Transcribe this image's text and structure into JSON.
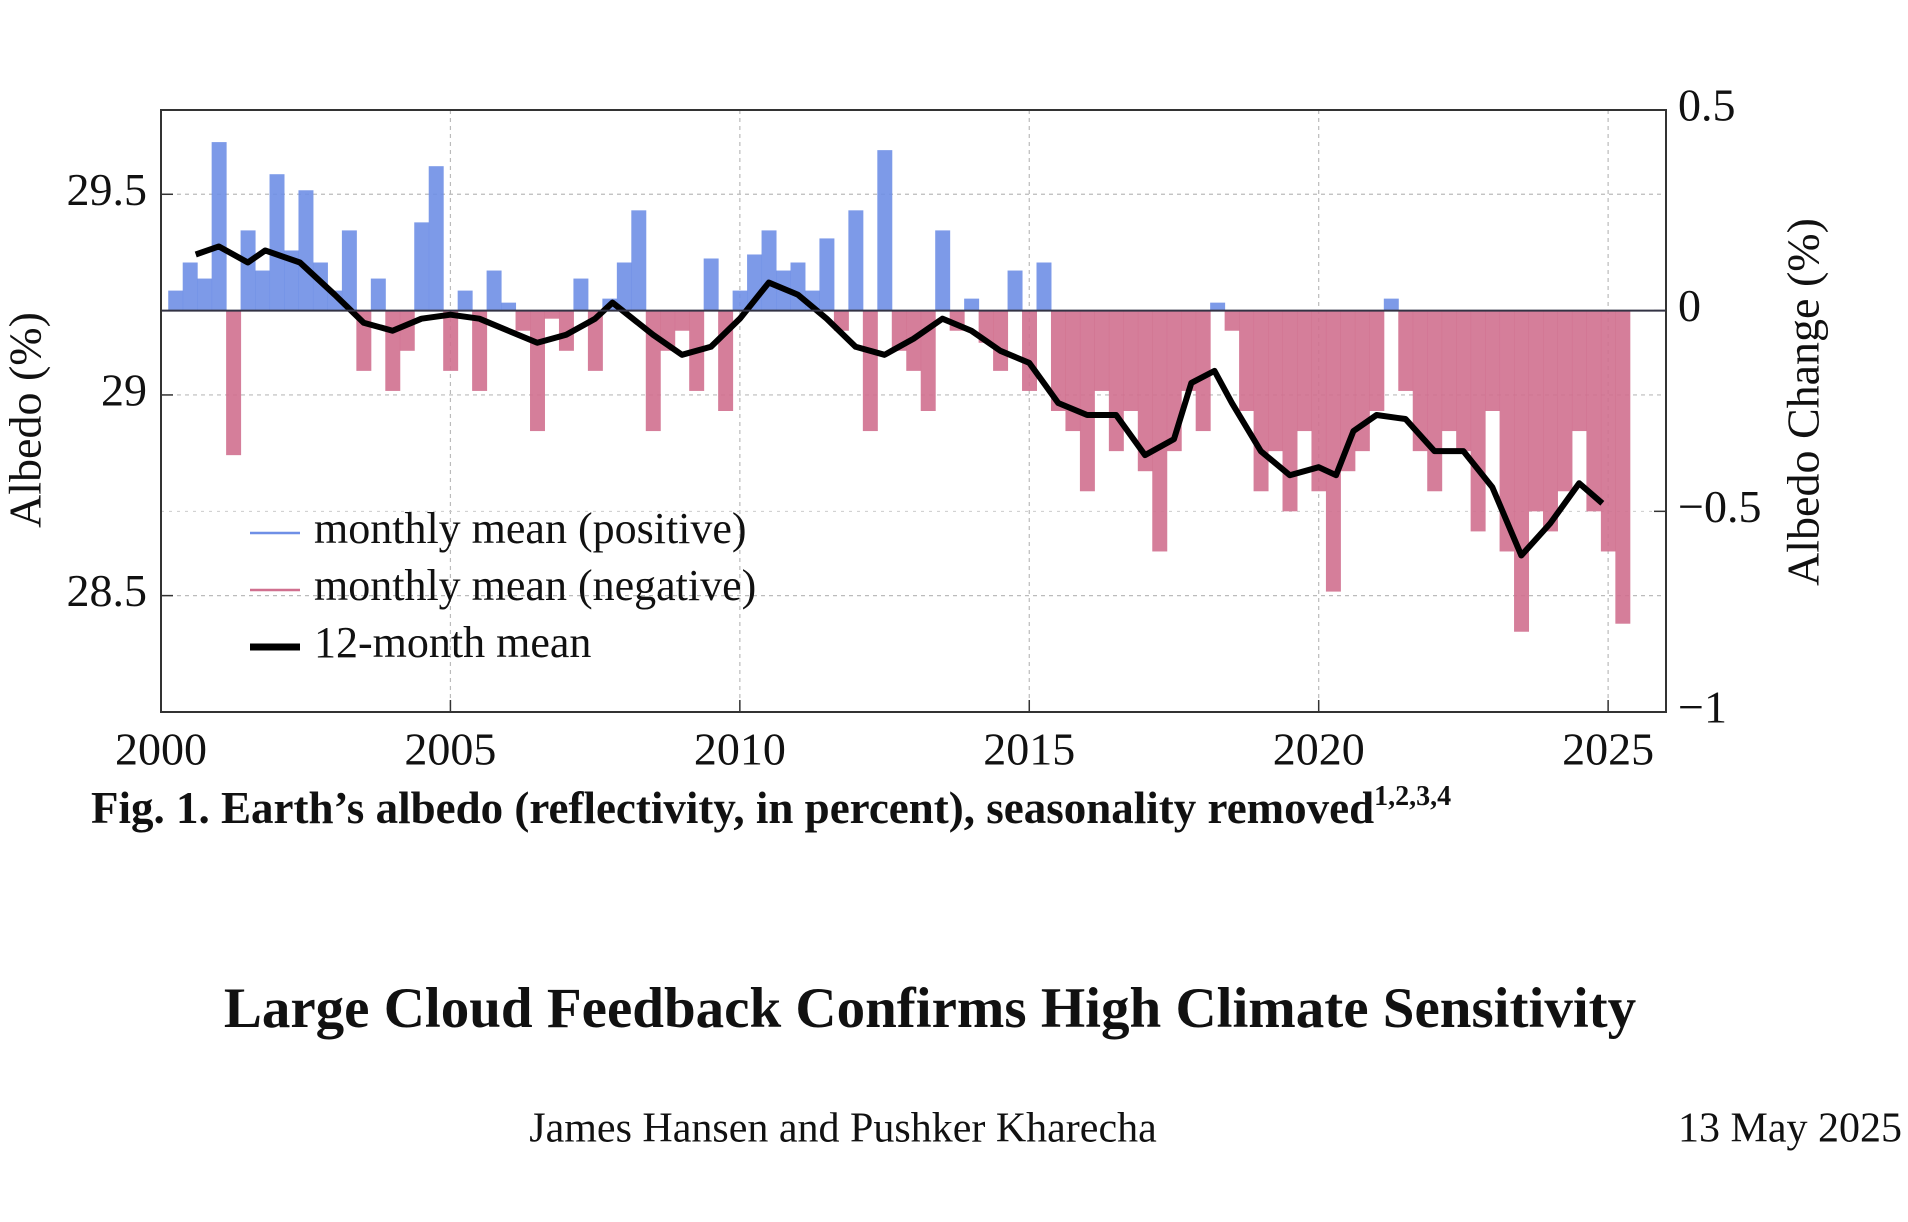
{
  "chart_data": {
    "type": "area",
    "y_label": "Albedo (%)",
    "y2_label": "Albedo Change (%)",
    "xlim": [
      2000,
      2026
    ],
    "xticks": [
      2000,
      2005,
      2010,
      2015,
      2020,
      2025
    ],
    "ylim": [
      28.21,
      29.71
    ],
    "yticks": [
      29.5,
      29,
      28.5
    ],
    "y2lim": [
      -1,
      0.5
    ],
    "y2ticks": [
      0.5,
      0,
      {
        "value": -0.5,
        "label": "−0.5"
      },
      {
        "value": -1,
        "label": "−1"
      }
    ],
    "grid": true,
    "x": [
      2000.25,
      2000.5,
      2000.75,
      2001,
      2001.25,
      2001.5,
      2001.75,
      2002,
      2002.25,
      2002.5,
      2002.75,
      2003,
      2003.25,
      2003.5,
      2003.75,
      2004,
      2004.25,
      2004.5,
      2004.75,
      2005,
      2005.25,
      2005.5,
      2005.75,
      2006,
      2006.25,
      2006.5,
      2006.75,
      2007,
      2007.25,
      2007.5,
      2007.75,
      2008,
      2008.25,
      2008.5,
      2008.75,
      2009,
      2009.25,
      2009.5,
      2009.75,
      2010,
      2010.25,
      2010.5,
      2010.75,
      2011,
      2011.25,
      2011.5,
      2011.75,
      2012,
      2012.25,
      2012.5,
      2012.75,
      2013,
      2013.25,
      2013.5,
      2013.75,
      2014,
      2014.25,
      2014.5,
      2014.75,
      2015,
      2015.25,
      2015.5,
      2015.75,
      2016,
      2016.25,
      2016.5,
      2016.75,
      2017,
      2017.25,
      2017.5,
      2017.75,
      2018,
      2018.25,
      2018.5,
      2018.75,
      2019,
      2019.25,
      2019.5,
      2019.75,
      2020,
      2020.25,
      2020.5,
      2020.75,
      2021,
      2021.25,
      2021.5,
      2021.75,
      2022,
      2022.25,
      2022.5,
      2022.75,
      2023,
      2023.25,
      2023.5,
      2023.75,
      2024,
      2024.25,
      2024.5,
      2024.75,
      2025,
      2025.25
    ],
    "series": [
      {
        "name": "monthly mean (positive)",
        "color": "#6f8fe6",
        "axis": "y2",
        "values": [
          0.05,
          0.12,
          0.08,
          0.42,
          null,
          0.2,
          0.1,
          0.34,
          0.15,
          0.3,
          0.12,
          0.05,
          0.2,
          null,
          0.08,
          null,
          null,
          0.22,
          0.36,
          null,
          0.05,
          null,
          0.1,
          0.02,
          null,
          null,
          null,
          null,
          0.08,
          null,
          0.03,
          0.12,
          0.25,
          null,
          null,
          null,
          null,
          0.13,
          null,
          0.05,
          0.14,
          0.2,
          0.1,
          0.12,
          0.05,
          0.18,
          null,
          0.25,
          null,
          0.4,
          null,
          null,
          null,
          0.2,
          null,
          0.03,
          null,
          null,
          0.1,
          null,
          0.12,
          null,
          null,
          null,
          null,
          null,
          null,
          null,
          null,
          null,
          null,
          null,
          0.02,
          null,
          null,
          null,
          null,
          null,
          null,
          null,
          null,
          null,
          null,
          null,
          0.03,
          null,
          null,
          null,
          null,
          null,
          null,
          null,
          null,
          null,
          null,
          null,
          null,
          null,
          null,
          null,
          null
        ]
      },
      {
        "name": "monthly mean (negative)",
        "color": "#d0708f",
        "axis": "y2",
        "values": [
          null,
          null,
          null,
          null,
          -0.36,
          null,
          null,
          null,
          null,
          null,
          null,
          null,
          null,
          -0.15,
          null,
          -0.2,
          -0.1,
          null,
          null,
          -0.15,
          null,
          -0.2,
          null,
          null,
          -0.05,
          -0.3,
          -0.02,
          -0.1,
          null,
          -0.15,
          null,
          null,
          null,
          -0.3,
          -0.1,
          -0.05,
          -0.2,
          null,
          -0.25,
          null,
          null,
          null,
          null,
          null,
          null,
          null,
          -0.05,
          null,
          -0.3,
          null,
          -0.1,
          -0.15,
          -0.25,
          null,
          -0.05,
          null,
          -0.08,
          -0.15,
          null,
          -0.2,
          null,
          -0.25,
          -0.3,
          -0.45,
          -0.2,
          -0.35,
          -0.25,
          -0.4,
          -0.6,
          -0.35,
          -0.2,
          -0.3,
          null,
          -0.05,
          -0.25,
          -0.45,
          -0.35,
          -0.5,
          -0.3,
          -0.45,
          -0.7,
          -0.4,
          -0.35,
          -0.25,
          null,
          -0.2,
          -0.35,
          -0.45,
          -0.3,
          -0.35,
          -0.55,
          -0.25,
          -0.6,
          -0.8,
          -0.5,
          -0.55,
          -0.45,
          -0.3,
          -0.5,
          -0.6,
          -0.78
        ]
      },
      {
        "name": "12-month mean",
        "color": "#000000",
        "axis": "y2",
        "type": "line",
        "x": [
          2000.6,
          2001,
          2001.5,
          2001.8,
          2002.4,
          2003,
          2003.5,
          2004,
          2004.5,
          2005,
          2005.5,
          2006,
          2006.5,
          2007,
          2007.5,
          2007.8,
          2008.5,
          2009,
          2009.5,
          2010,
          2010.5,
          2011,
          2011.5,
          2012,
          2012.5,
          2013,
          2013.5,
          2014,
          2014.5,
          2015,
          2015.5,
          2016,
          2016.5,
          2017,
          2017.5,
          2017.8,
          2018.2,
          2018.5,
          2019,
          2019.5,
          2020,
          2020.3,
          2020.6,
          2021,
          2021.5,
          2022,
          2022.5,
          2023,
          2023.5,
          2024,
          2024.5,
          2024.9
        ],
        "values": [
          0.14,
          0.16,
          0.12,
          0.15,
          0.12,
          0.04,
          -0.03,
          -0.05,
          -0.02,
          -0.01,
          -0.02,
          -0.05,
          -0.08,
          -0.06,
          -0.02,
          0.02,
          -0.06,
          -0.11,
          -0.09,
          -0.02,
          0.07,
          0.04,
          -0.02,
          -0.09,
          -0.11,
          -0.07,
          -0.02,
          -0.05,
          -0.1,
          -0.13,
          -0.23,
          -0.26,
          -0.26,
          -0.36,
          -0.32,
          -0.18,
          -0.15,
          -0.23,
          -0.35,
          -0.41,
          -0.39,
          -0.41,
          -0.3,
          -0.26,
          -0.27,
          -0.35,
          -0.35,
          -0.44,
          -0.61,
          -0.53,
          -0.43,
          -0.48
        ]
      }
    ]
  },
  "caption": {
    "text": "Fig. 1. Earth’s albedo (reflectivity, in percent), seasonality removed",
    "superscript": "1,2,3,4"
  },
  "title": "Large Cloud Feedback Confirms High Climate Sensitivity",
  "authors": "James Hansen and Pushker Kharecha",
  "date": "13 May 2025"
}
